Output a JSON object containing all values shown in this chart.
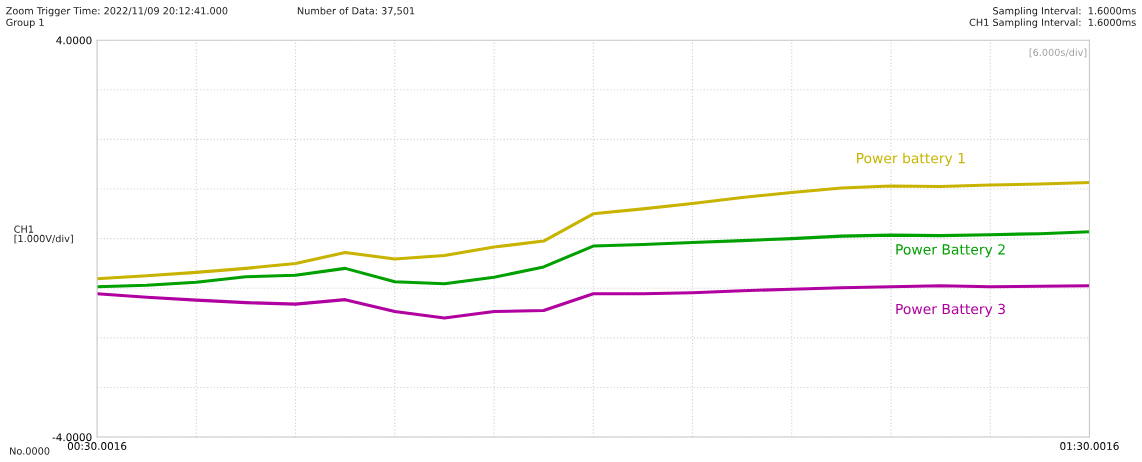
{
  "chart_data": {
    "type": "line",
    "annotations": [
      "Zoom Trigger Time: 2022/11/09 20:12:41.000",
      "Group 1",
      "Number of Data: 37,501",
      "Sampling Interval:  1.6000ms",
      "CH1 Sampling Interval:  1.6000ms",
      "[6.000s/div]",
      "CH1",
      "[1.000V/div]",
      "No.0000"
    ],
    "categories": [
      "00:30.0016",
      null,
      null,
      null,
      null,
      null,
      null,
      null,
      null,
      null,
      null,
      null,
      null,
      null,
      null,
      null,
      null,
      null,
      null,
      null,
      "01:30.0016"
    ],
    "ylim": [
      -4,
      4
    ],
    "yticks": [
      {
        "value": -4,
        "label": "-4.0000"
      },
      {
        "value": -3,
        "label": null
      },
      {
        "value": -2,
        "label": null
      },
      {
        "value": -1,
        "label": null
      },
      {
        "value": 0,
        "label": null
      },
      {
        "value": 1,
        "label": null
      },
      {
        "value": 2,
        "label": null
      },
      {
        "value": 3,
        "label": null
      },
      {
        "value": 4,
        "label": "4.0000"
      }
    ],
    "grid": true,
    "legend": false,
    "marker": "none",
    "line_style": "solid",
    "series": [
      {
        "name": "Power battery 1",
        "color": "#c8b400",
        "values": [
          -0.81,
          -0.75,
          -0.68,
          -0.6,
          -0.5,
          -0.28,
          -0.41,
          -0.34,
          -0.17,
          -0.05,
          0.5,
          0.6,
          0.71,
          0.83,
          0.93,
          1.02,
          1.06,
          1.05,
          1.08,
          1.1,
          1.13
        ]
      },
      {
        "name": "Power Battery 2",
        "color": "#00a000",
        "values": [
          -0.97,
          -0.94,
          -0.88,
          -0.77,
          -0.74,
          -0.6,
          -0.87,
          -0.91,
          -0.78,
          -0.57,
          -0.15,
          -0.12,
          -0.08,
          -0.04,
          0.0,
          0.05,
          0.07,
          0.06,
          0.08,
          0.1,
          0.14
        ]
      },
      {
        "name": "Power Battery 3",
        "color": "#b000a0",
        "values": [
          -1.11,
          -1.18,
          -1.24,
          -1.29,
          -1.32,
          -1.23,
          -1.47,
          -1.6,
          -1.47,
          -1.45,
          -1.11,
          -1.11,
          -1.09,
          -1.05,
          -1.02,
          -0.99,
          -0.97,
          -0.95,
          -0.97,
          -0.96,
          -0.95
        ]
      }
    ]
  }
}
